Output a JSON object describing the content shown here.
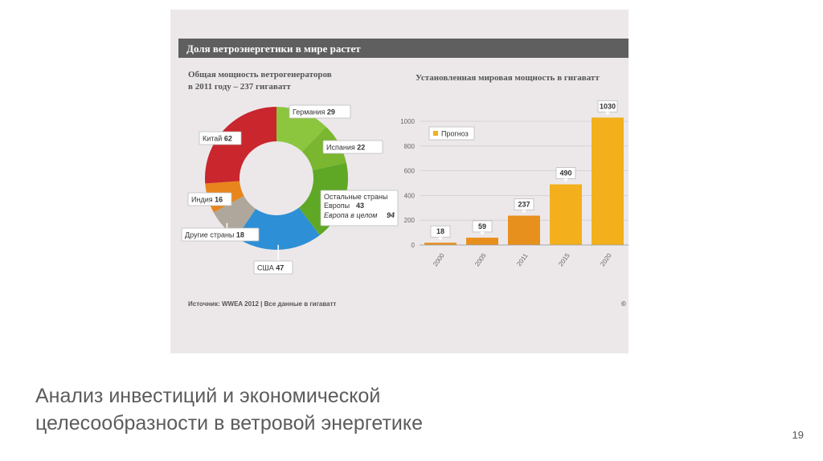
{
  "slide": {
    "title_line1": "Анализ инвестиций и экономической",
    "title_line2": "целесообразности в ветровой энергетике",
    "page_number": "19"
  },
  "infographic": {
    "header": "Доля ветроэнергетики в мире растет",
    "source": "Источник: WWEA 2012 | Все данные в гигаватт",
    "corner_mark": "©"
  },
  "colors": {
    "panel": "#ece8ea",
    "header_bar": "#5f5f5f",
    "china": "#c9262d",
    "germany": "#8cc63f",
    "spain": "#7ab62f",
    "europe_other": "#5fa826",
    "usa": "#2d8fd6",
    "india": "#e8851c",
    "other": "#b0a79c",
    "bar_actual": "#e8901e",
    "bar_forecast": "#f3b01c"
  },
  "chart_data": [
    {
      "type": "pie",
      "title": "Общая мощность ветрогенераторов в 2011 году – 237 гигаватт",
      "slices": [
        {
          "label": "Германия",
          "value": 29,
          "color_key": "germany"
        },
        {
          "label": "Испания",
          "value": 22,
          "color_key": "spain"
        },
        {
          "label": "Остальные страны Европы",
          "value": 43,
          "color_key": "europe_other"
        },
        {
          "label": "США",
          "value": 47,
          "color_key": "usa"
        },
        {
          "label": "Другие страны",
          "value": 18,
          "color_key": "other"
        },
        {
          "label": "Индия",
          "value": 16,
          "color_key": "india"
        },
        {
          "label": "Китай",
          "value": 62,
          "color_key": "china"
        }
      ],
      "annotation": {
        "label": "Европа в целом",
        "value": 94
      }
    },
    {
      "type": "bar",
      "title": "Установленная мировая мощность в гигаватт",
      "categories": [
        "2000",
        "2005",
        "2011",
        "2015",
        "2020"
      ],
      "values": [
        18,
        59,
        237,
        490,
        1030
      ],
      "forecast": [
        false,
        false,
        false,
        true,
        true
      ],
      "legend": {
        "label": "Прогноз"
      },
      "ylim": [
        0,
        1000
      ],
      "yticks": [
        0,
        200,
        400,
        600,
        800,
        1000
      ],
      "grid": true
    }
  ]
}
